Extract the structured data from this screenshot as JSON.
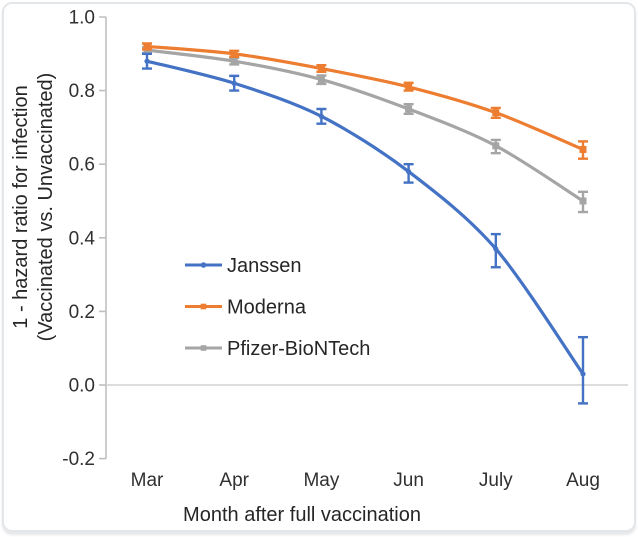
{
  "chart_data": {
    "type": "line",
    "title": "",
    "xlabel": "Month after full vaccination",
    "ylabel": "1 - hazard ratio for infection (Vaccinated vs. Unvaccinated)",
    "ylabel_lines": [
      "1 - hazard ratio for infection",
      "(Vaccinated vs. Unvaccinated)"
    ],
    "categories": [
      "Mar",
      "Apr",
      "May",
      "Jun",
      "July",
      "Aug"
    ],
    "ylim": [
      -0.2,
      1.0
    ],
    "yticks": [
      1.0,
      0.8,
      0.6,
      0.4,
      0.2,
      0.0,
      -0.2
    ],
    "ytick_labels": [
      "1.0",
      "0.8",
      "0.6",
      "0.4",
      "0.2",
      "0.0",
      "-0.2"
    ],
    "grid": "horizontal line at y=0 only",
    "legend_position": "inside center-left, vertical",
    "series": [
      {
        "name": "Janssen",
        "color": "#4472C4",
        "marker": "circle",
        "values": [
          0.88,
          0.82,
          0.73,
          0.58,
          0.37,
          0.03
        ],
        "ci_low": [
          0.86,
          0.8,
          0.71,
          0.55,
          0.32,
          -0.05
        ],
        "ci_high": [
          0.9,
          0.84,
          0.75,
          0.6,
          0.41,
          0.13
        ]
      },
      {
        "name": "Moderna",
        "color": "#ED7D31",
        "marker": "square",
        "values": [
          0.92,
          0.9,
          0.86,
          0.81,
          0.74,
          0.64
        ],
        "ci_low": [
          0.912,
          0.892,
          0.851,
          0.8,
          0.726,
          0.615
        ],
        "ci_high": [
          0.928,
          0.908,
          0.869,
          0.821,
          0.753,
          0.662
        ]
      },
      {
        "name": "Pfizer-BioNTech",
        "color": "#A5A5A5",
        "marker": "square",
        "values": [
          0.91,
          0.88,
          0.83,
          0.75,
          0.65,
          0.5
        ],
        "ci_low": [
          0.902,
          0.871,
          0.818,
          0.737,
          0.63,
          0.47
        ],
        "ci_high": [
          0.918,
          0.889,
          0.841,
          0.763,
          0.666,
          0.525
        ]
      }
    ]
  },
  "colors": {
    "axis": "#BFBFBF",
    "gridline": "#D2D2D2",
    "tick_text": "#303030",
    "title_text": "#262626",
    "card_border": "#E4E7EA"
  }
}
